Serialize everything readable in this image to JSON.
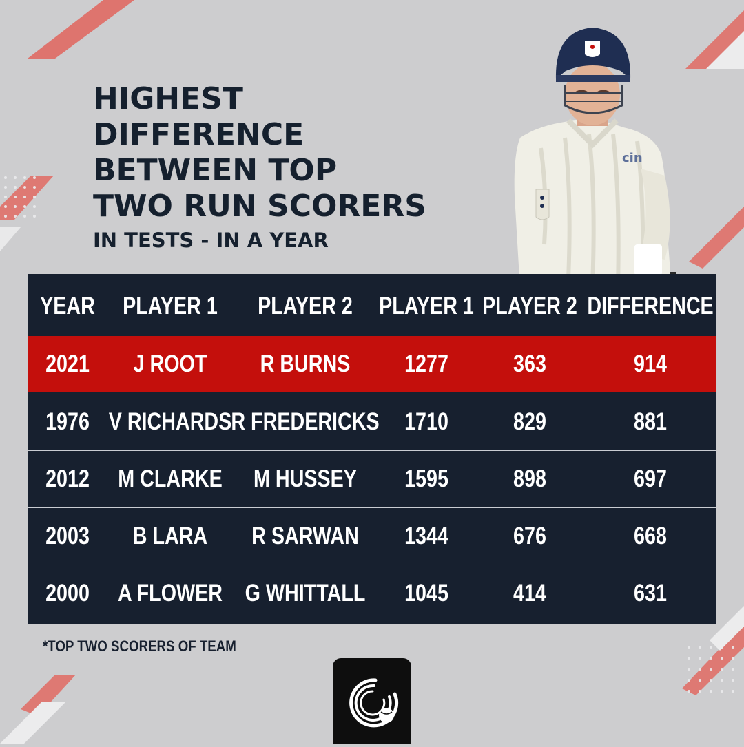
{
  "title_lines": [
    "HIGHEST",
    "DIFFERENCE",
    "BETWEEN TOP",
    "TWO RUN SCORERS"
  ],
  "subtitle": "IN TESTS - IN A YEAR",
  "table": {
    "headers": {
      "year": "YEAR",
      "player1": "PLAYER 1",
      "player2": "PLAYER 2",
      "runs1": "PLAYER 1",
      "runs2": "PLAYER 2",
      "difference": "DIFFERENCE"
    },
    "rows": [
      {
        "year": "2021",
        "player1": "J ROOT",
        "player2": "R BURNS",
        "runs1": "1277",
        "runs2": "363",
        "difference": "914"
      },
      {
        "year": "1976",
        "player1": "V RICHARDS",
        "player2": "R FREDERICKS",
        "runs1": "1710",
        "runs2": "829",
        "difference": "881"
      },
      {
        "year": "2012",
        "player1": "M CLARKE",
        "player2": "M HUSSEY",
        "runs1": "1595",
        "runs2": "898",
        "difference": "697"
      },
      {
        "year": "2003",
        "player1": "B LARA",
        "player2": "R SARWAN",
        "runs1": "1344",
        "runs2": "676",
        "difference": "668"
      },
      {
        "year": "2000",
        "player1": "A FLOWER",
        "player2": "G WHITTALL",
        "runs1": "1045",
        "runs2": "414",
        "difference": "631"
      }
    ],
    "highlight_color": "#c40f0c",
    "background_color": "#17202f"
  },
  "footnote": "*TOP TWO SCORERS OF TEAM",
  "player_photo_icon": "cricketer-photo",
  "logo_icon": "cricket-ball-logo-icon",
  "player_badge_text": "cin"
}
